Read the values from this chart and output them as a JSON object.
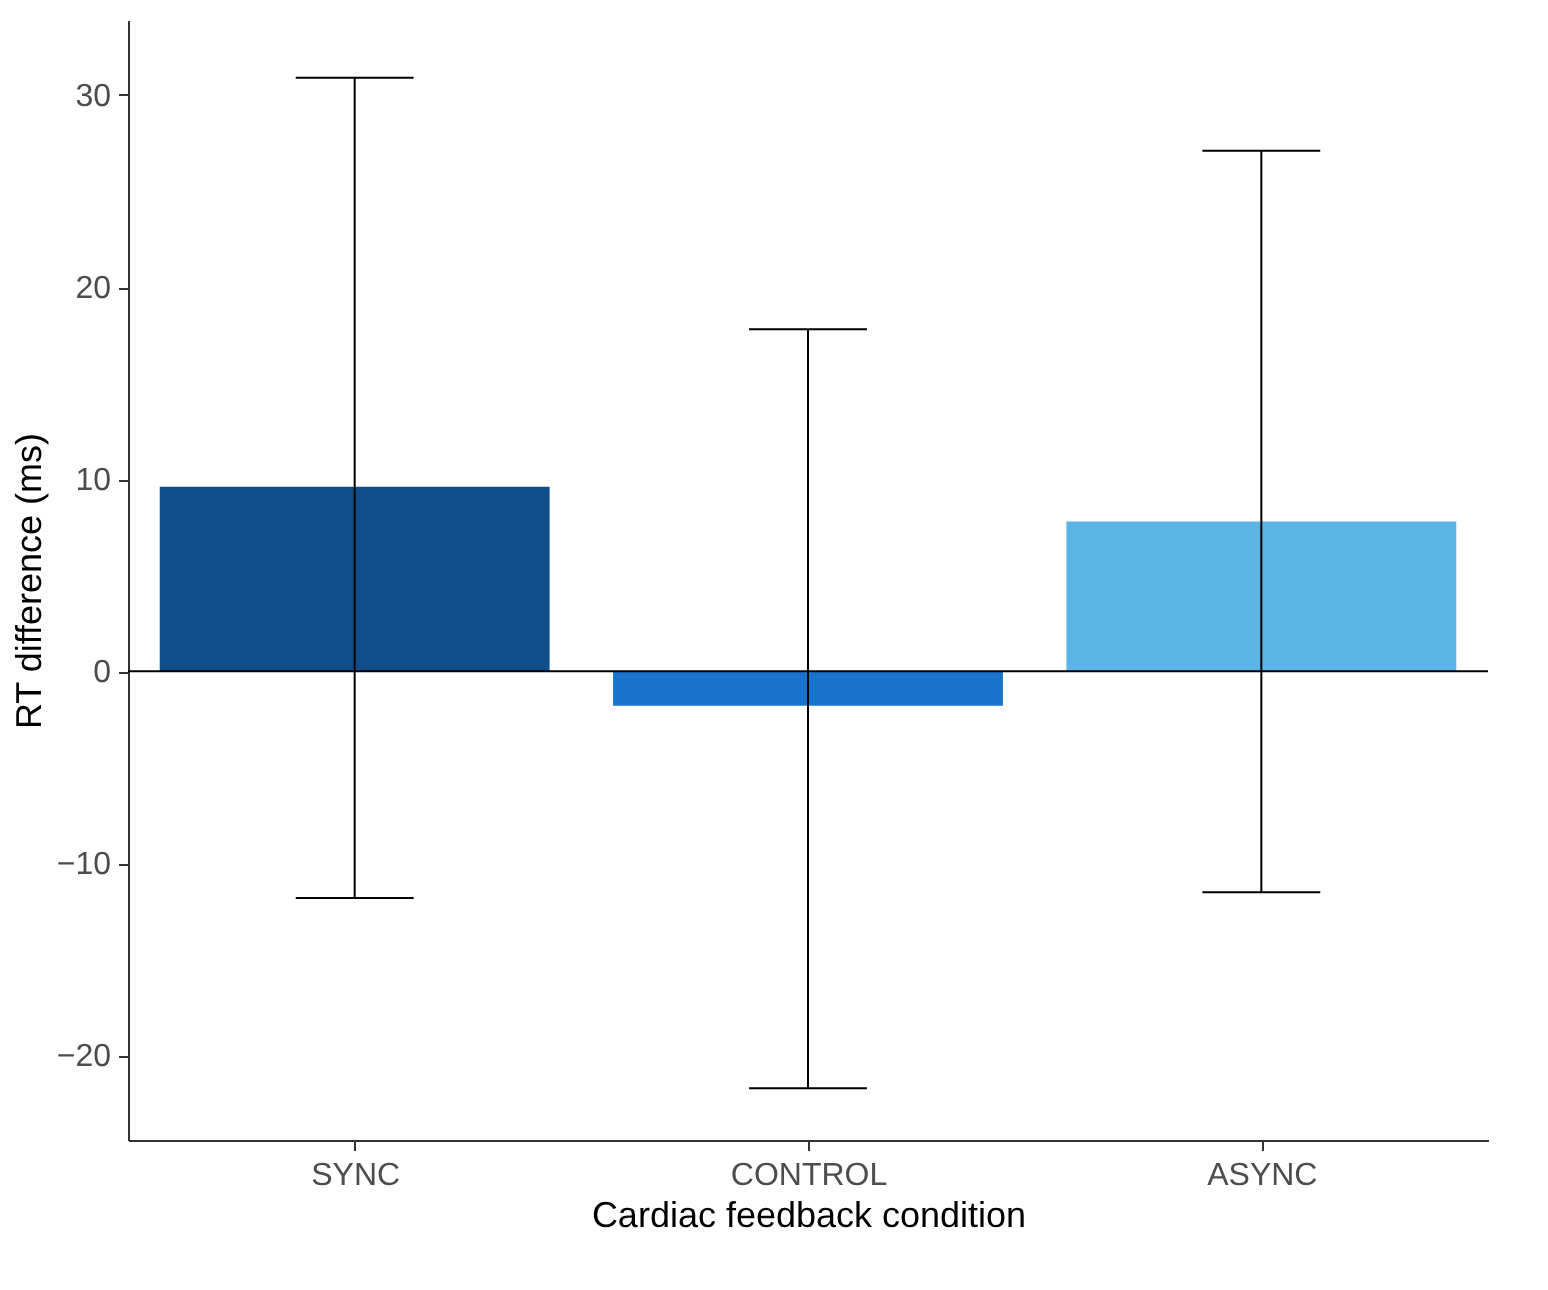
{
  "chart_data": {
    "type": "bar",
    "xlabel": "Cardiac feedback condition",
    "ylabel": "RT difference (ms)",
    "categories": [
      "SYNC",
      "CONTROL",
      "ASYNC"
    ],
    "values": [
      9.6,
      -1.8,
      7.8
    ],
    "colors": [
      "#104e8b",
      "#1874cd",
      "#5ab4e6"
    ],
    "errors": [
      [
        -11.8,
        30.9
      ],
      [
        -21.7,
        17.8
      ],
      [
        -11.5,
        27.1
      ]
    ],
    "ylim": [
      -24.4,
      33.9
    ],
    "yticks": [
      -20,
      -10,
      0,
      10,
      20,
      30
    ],
    "ref_lines": [
      {
        "axis": "y",
        "value": 0,
        "color": "#000000"
      }
    ]
  }
}
